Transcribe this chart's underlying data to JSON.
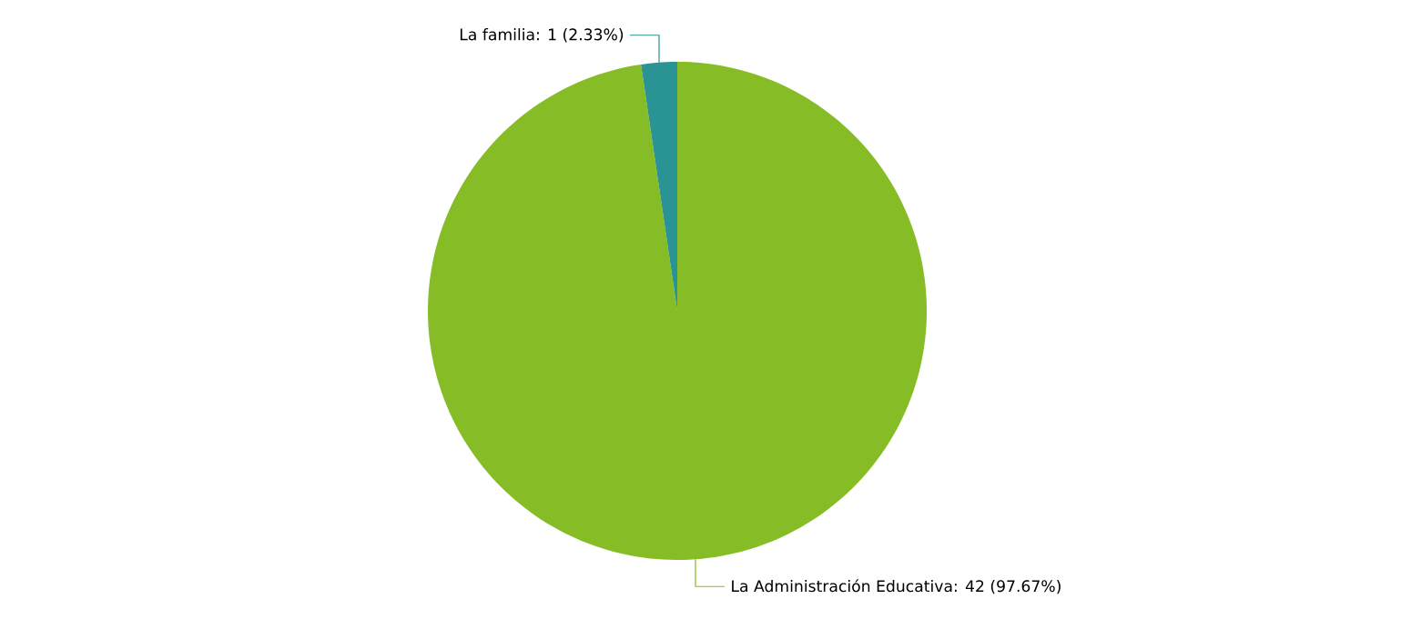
{
  "chart_data": {
    "type": "pie",
    "categories": [
      "La Administración Educativa",
      "La familia"
    ],
    "values": [
      42,
      1
    ],
    "value_labels": [
      ": 42 (97.67%)",
      ": 1 (2.33%)"
    ],
    "colors": [
      "#86bc25",
      "#2a9494"
    ]
  }
}
